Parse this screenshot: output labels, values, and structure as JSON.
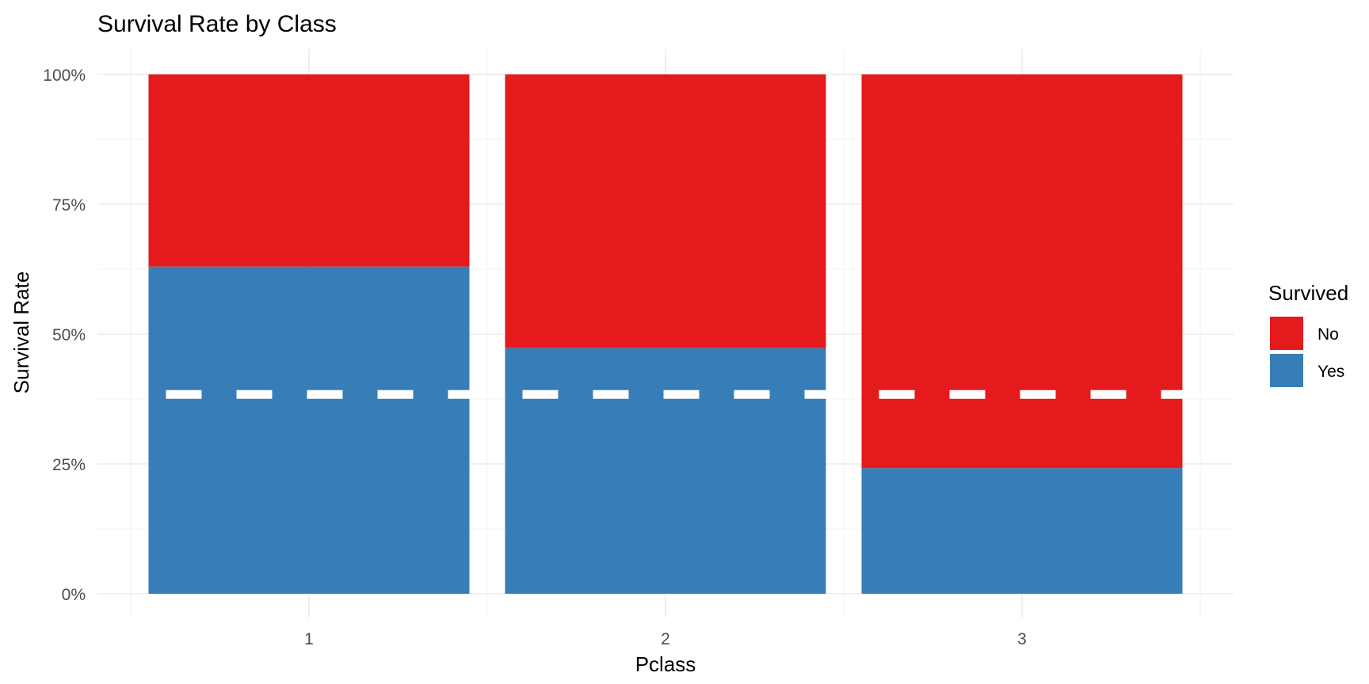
{
  "chart_data": {
    "type": "bar",
    "stacked": true,
    "percent_stacked": true,
    "title": "Survival Rate by Class",
    "xlabel": "Pclass",
    "ylabel": "Survival Rate",
    "categories": [
      "1",
      "2",
      "3"
    ],
    "series": [
      {
        "name": "No",
        "color": "#E41A1C",
        "values": [
          0.37,
          0.527,
          0.758
        ]
      },
      {
        "name": "Yes",
        "color": "#377EB8",
        "values": [
          0.63,
          0.473,
          0.242
        ]
      }
    ],
    "ylim": [
      0,
      1
    ],
    "y_ticks": [
      0,
      0.25,
      0.5,
      0.75,
      1
    ],
    "y_tick_labels": [
      "0%",
      "25%",
      "50%",
      "75%",
      "100%"
    ],
    "reference_line": {
      "y": 0.3838,
      "style": "dashed",
      "color": "#FFFFFF"
    },
    "legend": {
      "title": "Survived",
      "position": "right",
      "items": [
        {
          "label": "No",
          "color": "#E41A1C"
        },
        {
          "label": "Yes",
          "color": "#377EB8"
        }
      ]
    },
    "grid": true
  }
}
